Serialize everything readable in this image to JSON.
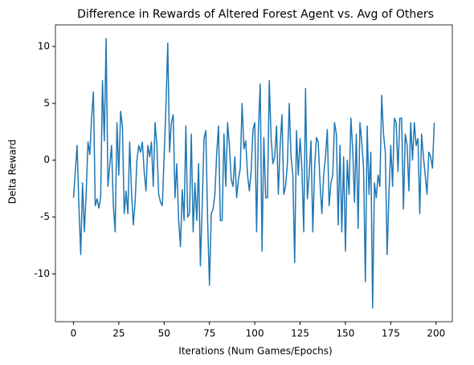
{
  "chart_data": {
    "type": "line",
    "title": "Difference in Rewards of Altered Forest Agent vs. Avg of Others",
    "x_label": "Iterations (Num Games/Epochs)",
    "y_label": "Delta Reward",
    "color": "#1f77b4",
    "x": [
      0,
      1,
      2,
      3,
      4,
      5,
      6,
      7,
      8,
      9,
      10,
      11,
      12,
      13,
      14,
      15,
      16,
      17,
      18,
      19,
      20,
      21,
      22,
      23,
      24,
      25,
      26,
      27,
      28,
      29,
      30,
      31,
      32,
      33,
      34,
      35,
      36,
      37,
      38,
      39,
      40,
      41,
      42,
      43,
      44,
      45,
      46,
      47,
      48,
      49,
      50,
      51,
      52,
      53,
      54,
      55,
      56,
      57,
      58,
      59,
      60,
      61,
      62,
      63,
      64,
      65,
      66,
      67,
      68,
      69,
      70,
      71,
      72,
      73,
      74,
      75,
      76,
      77,
      78,
      79,
      80,
      81,
      82,
      83,
      84,
      85,
      86,
      87,
      88,
      89,
      90,
      91,
      92,
      93,
      94,
      95,
      96,
      97,
      98,
      99,
      100,
      101,
      102,
      103,
      104,
      105,
      106,
      107,
      108,
      109,
      110,
      111,
      112,
      113,
      114,
      115,
      116,
      117,
      118,
      119,
      120,
      121,
      122,
      123,
      124,
      125,
      126,
      127,
      128,
      129,
      130,
      131,
      132,
      133,
      134,
      135,
      136,
      137,
      138,
      139,
      140,
      141,
      142,
      143,
      144,
      145,
      146,
      147,
      148,
      149,
      150,
      151,
      152,
      153,
      154,
      155,
      156,
      157,
      158,
      159,
      160,
      161,
      162,
      163,
      164,
      165,
      166,
      167,
      168,
      169,
      170,
      171,
      172,
      173,
      174,
      175,
      176,
      177,
      178,
      179,
      180,
      181,
      182,
      183,
      184,
      185,
      186,
      187,
      188,
      189,
      190,
      191,
      192,
      193,
      194,
      195,
      196,
      197,
      198,
      199
    ],
    "values": [
      -3.3,
      -1,
      1.3,
      -4,
      -8.3,
      -2,
      -6.3,
      -3,
      1.6,
      0.5,
      3.7,
      6,
      -4,
      -3.4,
      -4.2,
      -3.3,
      7,
      1.7,
      10.7,
      -2.3,
      -0.5,
      1.3,
      -4,
      -6.3,
      3.3,
      -1.3,
      4.3,
      3,
      -4.7,
      -2.7,
      -4.7,
      1.6,
      -2.7,
      -5.7,
      -3.7,
      0,
      1.3,
      0.7,
      1.6,
      -1,
      -2.7,
      1.3,
      0.3,
      1.6,
      -2.3,
      3.3,
      1.3,
      -3,
      -3.7,
      -4,
      0.3,
      4.7,
      10.3,
      0.7,
      3.3,
      4,
      -3.3,
      -0.3,
      -5.3,
      -7.6,
      -2.6,
      -5.3,
      3,
      -5,
      -4.7,
      2.3,
      -6.3,
      -2,
      -5.3,
      -0.3,
      -9.3,
      -4,
      1.9,
      2.6,
      -5.3,
      -11,
      -4.7,
      -4.3,
      -3,
      0.6,
      3,
      -5.3,
      -5.3,
      2.3,
      -2.3,
      3.3,
      1.3,
      -1.7,
      -2.3,
      0.3,
      -3.3,
      -1.7,
      -0.7,
      5,
      1,
      1.7,
      -1.3,
      -2.7,
      -1,
      2.7,
      3.3,
      -6.3,
      2.7,
      6.7,
      -8,
      2,
      -3.3,
      -3.3,
      7,
      2,
      -0.3,
      0.3,
      3,
      -3,
      1.3,
      4,
      -3,
      -2.3,
      -0.3,
      5,
      0.3,
      -1.3,
      -9,
      2.6,
      -1.3,
      1.9,
      -0.7,
      -6.3,
      6.3,
      -3.4,
      -1.3,
      1.7,
      -6.3,
      -0.7,
      2,
      1.6,
      -2,
      -4.7,
      -1.3,
      0.3,
      2.7,
      -4,
      -2,
      -1.3,
      3.3,
      2.3,
      -5.7,
      1.3,
      -6.3,
      0.3,
      -8,
      0,
      -3,
      3.7,
      1,
      -3.7,
      2.3,
      -6,
      3.3,
      1.6,
      -0.7,
      -10.7,
      3,
      -3,
      0.7,
      -13,
      -2,
      -3.3,
      -1.3,
      -2.3,
      5.7,
      2.3,
      0.7,
      -8.3,
      -3,
      1.3,
      -2.3,
      3.7,
      3.3,
      -1,
      3.7,
      3.7,
      -4.3,
      2.3,
      1.3,
      -2.7,
      3.3,
      0,
      3.3,
      1.3,
      1.9,
      -4.7,
      2.3,
      0.3,
      -1.3,
      -3,
      0.7,
      0.3,
      -0.7,
      3.3
    ],
    "xlim": [
      -9.95,
      208.95
    ],
    "xticks": [
      0,
      25,
      50,
      75,
      100,
      125,
      150,
      175,
      200
    ],
    "ylim": [
      -14.2,
      11.9
    ],
    "yticks": [
      -10,
      -5,
      0,
      5,
      10
    ],
    "grid": false
  }
}
